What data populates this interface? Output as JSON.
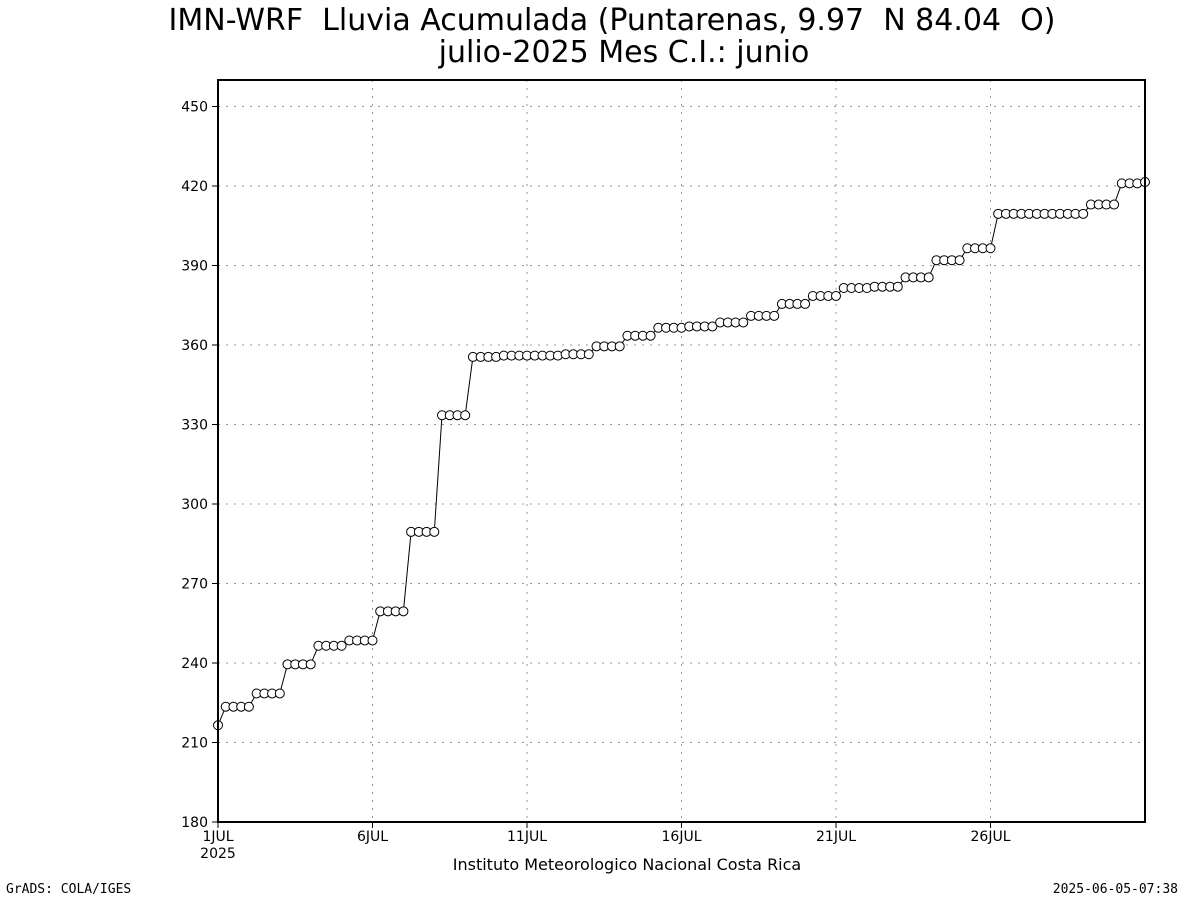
{
  "title_line1": "IMN-WRF  Lluvia Acumulada (Puntarenas, 9.97  N 84.04  O)",
  "title_line2": "julio-2025 Mes C.I.: junio",
  "footer_left": "GrADS: COLA/IGES",
  "footer_right": "2025-06-05-07:38",
  "chart_data": {
    "type": "line",
    "title": "IMN-WRF  Lluvia Acumulada (Puntarenas, 9.97  N 84.04  O)",
    "subtitle": "julio-2025 Mes C.I.: junio",
    "xlabel": "Instituto Meteorologico Nacional Costa Rica",
    "ylabel": "",
    "x_unit": "day of July 2025 (6-hourly)",
    "xlim": [
      1,
      31
    ],
    "ylim": [
      180,
      460
    ],
    "yticks": [
      180,
      210,
      240,
      270,
      300,
      330,
      360,
      390,
      420,
      450
    ],
    "xticks": [
      {
        "day": 1,
        "label": "1JUL",
        "sublabel": "2025"
      },
      {
        "day": 6,
        "label": "6JUL"
      },
      {
        "day": 11,
        "label": "11JUL"
      },
      {
        "day": 16,
        "label": "16JUL"
      },
      {
        "day": 21,
        "label": "21JUL"
      },
      {
        "day": 26,
        "label": "26JUL"
      }
    ],
    "grid": true,
    "marker": "open-circle",
    "series": [
      {
        "x": [
          1.0,
          1.25,
          1.5,
          1.75,
          2.0,
          2.25,
          2.5,
          2.75,
          3.0,
          3.25,
          3.5,
          3.75,
          4.0,
          4.25,
          4.5,
          4.75,
          5.0,
          5.25,
          5.5,
          5.75,
          6.0,
          6.25,
          6.5,
          6.75,
          7.0,
          7.25,
          7.5,
          7.75,
          8.0,
          8.25,
          8.5,
          8.75,
          9.0,
          9.25,
          9.5,
          9.75,
          10.0,
          10.25,
          10.5,
          10.75,
          11.0,
          11.25,
          11.5,
          11.75,
          12.0,
          12.25,
          12.5,
          12.75,
          13.0,
          13.25,
          13.5,
          13.75,
          14.0,
          14.25,
          14.5,
          14.75,
          15.0,
          15.25,
          15.5,
          15.75,
          16.0,
          16.25,
          16.5,
          16.75,
          17.0,
          17.25,
          17.5,
          17.75,
          18.0,
          18.25,
          18.5,
          18.75,
          19.0,
          19.25,
          19.5,
          19.75,
          20.0,
          20.25,
          20.5,
          20.75,
          21.0,
          21.25,
          21.5,
          21.75,
          22.0,
          22.25,
          22.5,
          22.75,
          23.0,
          23.25,
          23.5,
          23.75,
          24.0,
          24.25,
          24.5,
          24.75,
          25.0,
          25.25,
          25.5,
          25.75,
          26.0,
          26.25,
          26.5,
          26.75,
          27.0,
          27.25,
          27.5,
          27.75,
          28.0,
          28.25,
          28.5,
          28.75,
          29.0,
          29.25,
          29.5,
          29.75,
          30.0,
          30.25,
          30.5,
          30.75,
          31.0
        ],
        "y": [
          216.5,
          223.5,
          223.5,
          223.5,
          223.5,
          228.5,
          228.5,
          228.5,
          228.5,
          239.5,
          239.5,
          239.5,
          239.5,
          246.5,
          246.5,
          246.5,
          246.5,
          248.5,
          248.5,
          248.5,
          248.5,
          259.5,
          259.5,
          259.5,
          259.5,
          289.5,
          289.5,
          289.5,
          289.5,
          333.5,
          333.5,
          333.5,
          333.5,
          355.5,
          355.5,
          355.5,
          355.5,
          356.0,
          356.0,
          356.0,
          356.0,
          356.0,
          356.0,
          356.0,
          356.0,
          356.5,
          356.5,
          356.5,
          356.5,
          359.5,
          359.5,
          359.5,
          359.5,
          363.5,
          363.5,
          363.5,
          363.5,
          366.5,
          366.5,
          366.5,
          366.5,
          367.0,
          367.0,
          367.0,
          367.0,
          368.5,
          368.5,
          368.5,
          368.5,
          371.0,
          371.0,
          371.0,
          371.0,
          375.5,
          375.5,
          375.5,
          375.5,
          378.5,
          378.5,
          378.5,
          378.5,
          381.5,
          381.5,
          381.5,
          381.5,
          382.0,
          382.0,
          382.0,
          382.0,
          385.5,
          385.5,
          385.5,
          385.5,
          392.0,
          392.0,
          392.0,
          392.0,
          396.5,
          396.5,
          396.5,
          396.5,
          409.5,
          409.5,
          409.5,
          409.5,
          409.5,
          409.5,
          409.5,
          409.5,
          409.5,
          409.5,
          409.5,
          409.5,
          413.0,
          413.0,
          413.0,
          413.0,
          421.0,
          421.0,
          421.0,
          421.5
        ]
      }
    ]
  }
}
